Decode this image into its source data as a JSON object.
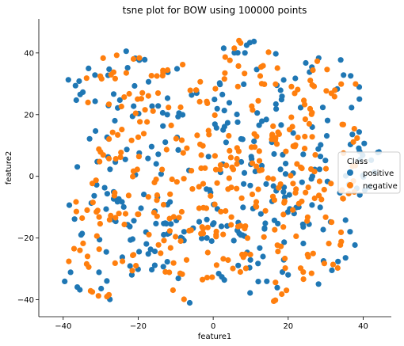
{
  "chart_data": {
    "type": "scatter",
    "title": "tsne plot for BOW using 100000 points",
    "xlabel": "feature1",
    "ylabel": "feature2",
    "xlim": [
      -46.5,
      47.5
    ],
    "ylim": [
      -45.5,
      51
    ],
    "x_ticks": [
      -40,
      -20,
      0,
      20,
      40
    ],
    "y_ticks": [
      -40,
      -20,
      0,
      20,
      40
    ],
    "grid": false,
    "legend": {
      "title": "Class",
      "placement": "center-right"
    },
    "series": [
      {
        "name": "positive",
        "color": "#1f77b4"
      },
      {
        "name": "negative",
        "color": "#ff7f0e"
      }
    ],
    "clusters": [
      {
        "cx": -20,
        "cy": 30,
        "rx": 19,
        "ry": 11
      },
      {
        "cx": 9,
        "cy": 32,
        "rx": 10,
        "ry": 13
      },
      {
        "cx": 28,
        "cy": 29,
        "rx": 12,
        "ry": 10
      },
      {
        "cx": -3,
        "cy": 3,
        "rx": 33,
        "ry": 24
      },
      {
        "cx": 25,
        "cy": 5,
        "rx": 20,
        "ry": 16
      },
      {
        "cx": -30,
        "cy": -22,
        "rx": 12,
        "ry": 18
      },
      {
        "cx": -3,
        "cy": -23,
        "rx": 16,
        "ry": 13
      },
      {
        "cx": 25,
        "cy": -22,
        "rx": 13,
        "ry": 13
      },
      {
        "cx": 15,
        "cy": -37,
        "rx": 6,
        "ry": 5
      },
      {
        "cx": -8,
        "cy": -38,
        "rx": 4,
        "ry": 3
      }
    ]
  }
}
